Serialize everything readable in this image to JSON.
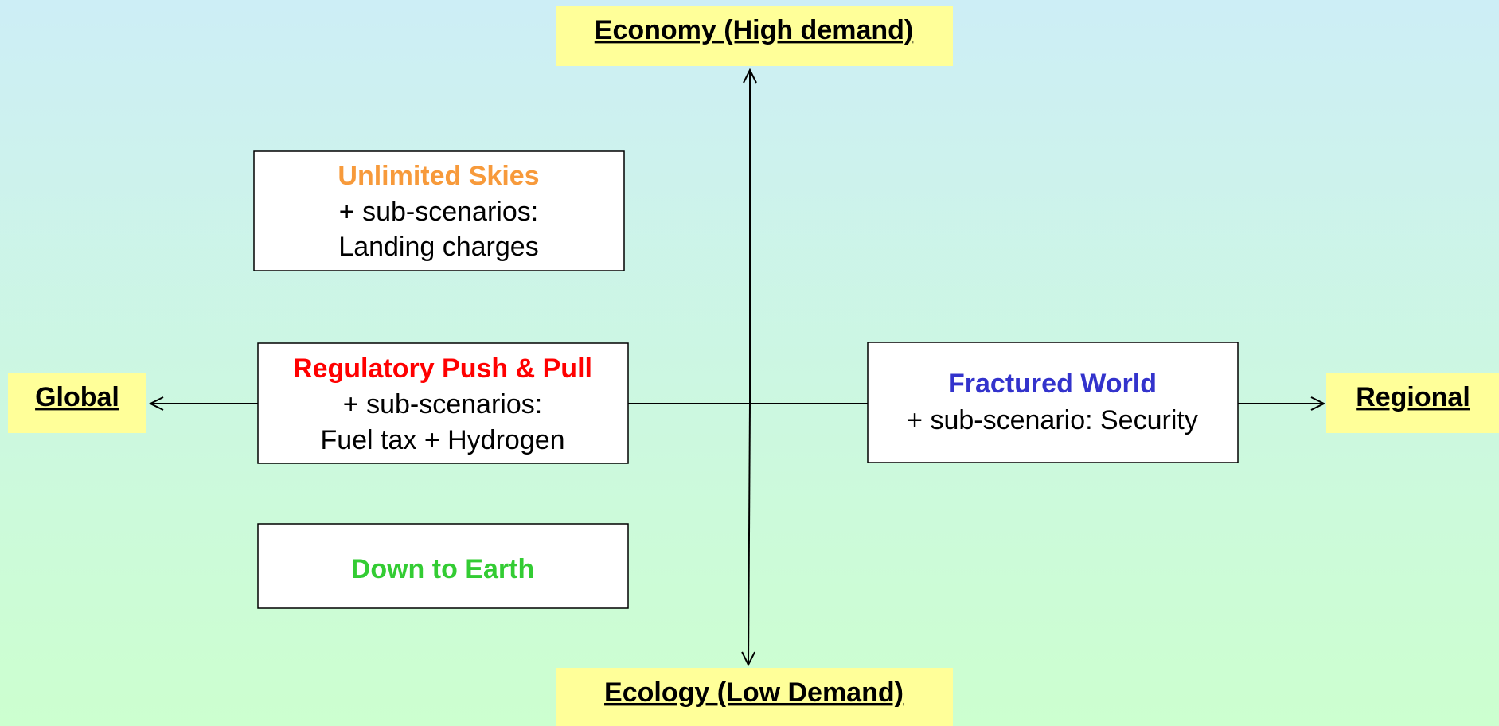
{
  "axes": {
    "top": "Economy (High demand)",
    "bottom": "Ecology (Low Demand)",
    "left": "Global",
    "right": "Regional"
  },
  "scenarios": [
    {
      "title": "Unlimited Skies",
      "lines": [
        "+ sub-scenarios:",
        "Landing charges"
      ]
    },
    {
      "title": "Regulatory Push & Pull",
      "lines": [
        "+ sub-scenarios:",
        "Fuel tax + Hydrogen"
      ]
    },
    {
      "title": "Fractured World",
      "lines": [
        "+ sub-scenario: Security"
      ]
    },
    {
      "title": "Down to Earth",
      "lines": []
    }
  ]
}
